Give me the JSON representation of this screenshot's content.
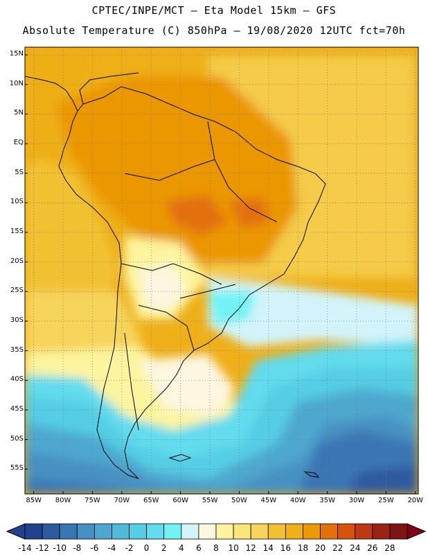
{
  "header": {
    "line1": "CPTEC/INPE/MCT –  Eta Model 15km – GFS",
    "line2": "Absolute Temperature (C) 850hPa – 19/08/2020 12UTC fct=70h"
  },
  "axes": {
    "latitudes": [
      {
        "label": "15N",
        "lat": 15
      },
      {
        "label": "10N",
        "lat": 10
      },
      {
        "label": "5N",
        "lat": 5
      },
      {
        "label": "EQ",
        "lat": 0
      },
      {
        "label": "5S",
        "lat": -5
      },
      {
        "label": "10S",
        "lat": -10
      },
      {
        "label": "15S",
        "lat": -15
      },
      {
        "label": "20S",
        "lat": -20
      },
      {
        "label": "25S",
        "lat": -25
      },
      {
        "label": "30S",
        "lat": -30
      },
      {
        "label": "35S",
        "lat": -35
      },
      {
        "label": "40S",
        "lat": -40
      },
      {
        "label": "45S",
        "lat": -45
      },
      {
        "label": "50S",
        "lat": -50
      },
      {
        "label": "55S",
        "lat": -55
      }
    ],
    "longitudes": [
      {
        "label": "85W",
        "lon": -85
      },
      {
        "label": "80W",
        "lon": -80
      },
      {
        "label": "75W",
        "lon": -75
      },
      {
        "label": "70W",
        "lon": -70
      },
      {
        "label": "65W",
        "lon": -65
      },
      {
        "label": "60W",
        "lon": -60
      },
      {
        "label": "55W",
        "lon": -55
      },
      {
        "label": "50W",
        "lon": -50
      },
      {
        "label": "45W",
        "lon": -45
      },
      {
        "label": "40W",
        "lon": -40
      },
      {
        "label": "35W",
        "lon": -35
      },
      {
        "label": "30W",
        "lon": -30
      },
      {
        "label": "25W",
        "lon": -25
      },
      {
        "label": "20W",
        "lon": -20
      }
    ]
  },
  "colorbar": {
    "labels": [
      "-14",
      "-12",
      "-10",
      "-8",
      "-6",
      "-4",
      "-2",
      "0",
      "2",
      "4",
      "6",
      "8",
      "10",
      "12",
      "14",
      "16",
      "18",
      "20",
      "22",
      "24",
      "26",
      "28"
    ],
    "colors": [
      "#23418c",
      "#2e5a9f",
      "#3a76b4",
      "#4691c2",
      "#4ea7cf",
      "#4fbbd8",
      "#55cde4",
      "#62dcee",
      "#71f3f6",
      "#d2f4fa",
      "#fdf6e0",
      "#fdf49f",
      "#fbe67a",
      "#f7d45a",
      "#f2c131",
      "#eeaf19",
      "#eb9706",
      "#e4700a",
      "#d6530e",
      "#bd3813",
      "#992416",
      "#7d1514"
    ]
  }
}
